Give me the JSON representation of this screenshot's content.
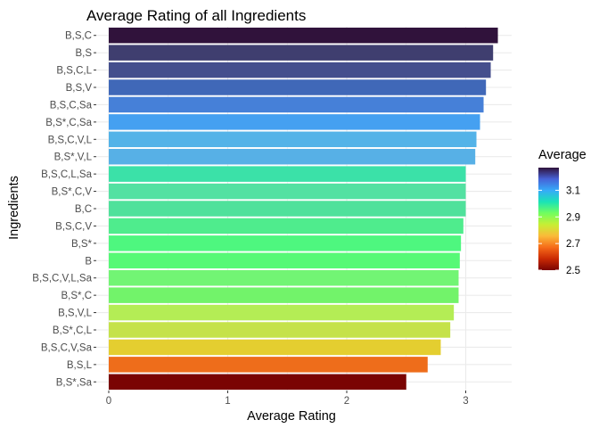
{
  "chart_data": {
    "type": "bar",
    "orientation": "horizontal",
    "title": "Average Rating of all Ingredients",
    "xlabel": "Average Rating",
    "ylabel": "Ingredients",
    "xlim": [
      0,
      3.3
    ],
    "xticks": [
      "0",
      "1",
      "2",
      "3"
    ],
    "grid": true,
    "categories": [
      "B,S,C",
      "B,S",
      "B,S,C,L",
      "B,S,V",
      "B,S,C,Sa",
      "B,S*,C,Sa",
      "B,S,C,V,L",
      "B,S*,V,L",
      "B,S,C,L,Sa",
      "B,S*,C,V",
      "B,C",
      "B,S,C,V",
      "B,S*",
      "B",
      "B,S,C,V,L,Sa",
      "B,S*,C",
      "B,S,V,L",
      "B,S*,C,L",
      "B,S,C,V,Sa",
      "B,S,L",
      "B,S*,Sa"
    ],
    "values": [
      3.27,
      3.23,
      3.21,
      3.17,
      3.15,
      3.12,
      3.09,
      3.08,
      3.0,
      3.0,
      3.0,
      2.98,
      2.96,
      2.95,
      2.94,
      2.94,
      2.9,
      2.87,
      2.79,
      2.68,
      2.5
    ],
    "bar_colors": [
      "#30123b",
      "#3f3e6f",
      "#454f8d",
      "#4068b8",
      "#4680d8",
      "#45a0f1",
      "#53b3e8",
      "#57b0e6",
      "#3be1a8",
      "#53e1a2",
      "#4fe19b",
      "#4fec8d",
      "#4ef77f",
      "#56f976",
      "#72f574",
      "#72f36a",
      "#b4ed55",
      "#c5e24a",
      "#e4ce30",
      "#ee6d1b",
      "#7a0403"
    ],
    "legend": {
      "title": "Average",
      "placement": "right",
      "range": [
        2.5,
        3.27
      ],
      "ticks": [
        "3.1",
        "2.9",
        "2.7",
        "2.5"
      ],
      "gradient": [
        "#30123b",
        "#4662d7",
        "#36aaf9",
        "#1ae4b6",
        "#72fe5e",
        "#c8ef34",
        "#faba39",
        "#f66b19",
        "#ca2a04",
        "#7a0403"
      ]
    }
  }
}
